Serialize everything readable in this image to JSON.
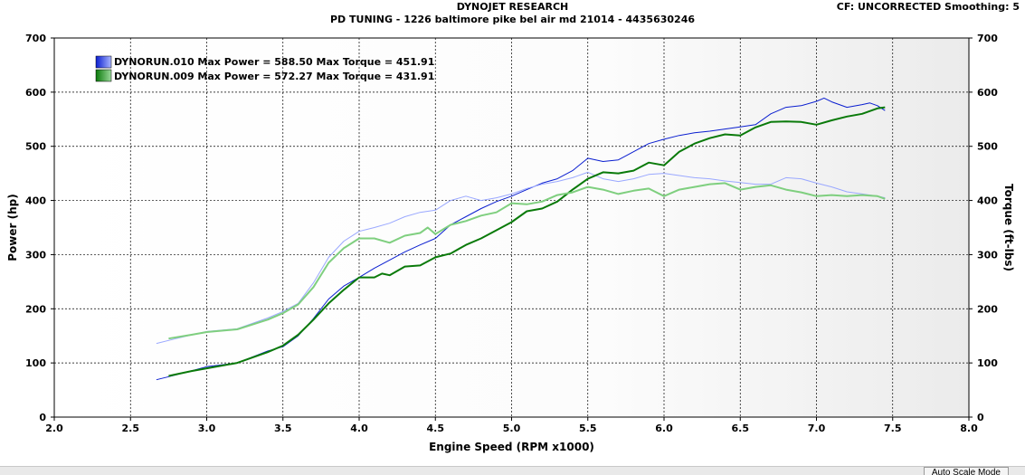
{
  "header": {
    "title": "DYNOJET RESEARCH",
    "subtitle": "PD TUNING - 1226 baltimore pike bel air md 21014 - 4435630246",
    "cf_info": "CF: UNCORRECTED  Smoothing: 5"
  },
  "status_bar": {
    "auto_scale_label": "Auto Scale Mode"
  },
  "chart_data": {
    "type": "line",
    "xlabel": "Engine Speed (RPM x1000)",
    "ylabel": "Power (hp)",
    "y2label": "Torque (ft-lbs)",
    "xlim": [
      2.0,
      8.0
    ],
    "ylim": [
      0,
      700
    ],
    "y2lim": [
      0,
      700
    ],
    "xticks": [
      "2.0",
      "2.5",
      "3.0",
      "3.5",
      "4.0",
      "4.5",
      "5.0",
      "5.5",
      "6.0",
      "6.5",
      "7.0",
      "7.5",
      "8.0"
    ],
    "yticks": [
      "0",
      "100",
      "200",
      "300",
      "400",
      "500",
      "600",
      "700"
    ],
    "grid": true,
    "legend_position": "top-left",
    "legend": [
      {
        "label": "DYNORUN.010 Max Power = 588.50 Max Torque = 451.91",
        "color_dark": "#0a1ed0",
        "color_light": "#9aa8ff"
      },
      {
        "label": "DYNORUN.009 Max Power = 572.27 Max Torque = 431.91",
        "color_dark": "#0a7a0a",
        "color_light": "#7fcf7f"
      }
    ],
    "series": [
      {
        "name": "DYNORUN.010",
        "measure": "power",
        "color": "#0a1ed0",
        "points": [
          [
            2.67,
            69
          ],
          [
            2.8,
            78
          ],
          [
            3.0,
            93
          ],
          [
            3.2,
            100
          ],
          [
            3.4,
            122
          ],
          [
            3.5,
            130
          ],
          [
            3.6,
            150
          ],
          [
            3.7,
            182
          ],
          [
            3.8,
            218
          ],
          [
            3.9,
            242
          ],
          [
            4.0,
            258
          ],
          [
            4.1,
            275
          ],
          [
            4.2,
            290
          ],
          [
            4.3,
            305
          ],
          [
            4.4,
            318
          ],
          [
            4.5,
            330
          ],
          [
            4.6,
            355
          ],
          [
            4.7,
            370
          ],
          [
            4.8,
            385
          ],
          [
            4.9,
            398
          ],
          [
            5.0,
            408
          ],
          [
            5.1,
            420
          ],
          [
            5.2,
            432
          ],
          [
            5.3,
            440
          ],
          [
            5.4,
            455
          ],
          [
            5.5,
            478
          ],
          [
            5.6,
            472
          ],
          [
            5.7,
            475
          ],
          [
            5.8,
            490
          ],
          [
            5.9,
            505
          ],
          [
            6.0,
            513
          ],
          [
            6.1,
            520
          ],
          [
            6.2,
            525
          ],
          [
            6.3,
            528
          ],
          [
            6.4,
            532
          ],
          [
            6.5,
            536
          ],
          [
            6.6,
            540
          ],
          [
            6.7,
            560
          ],
          [
            6.8,
            572
          ],
          [
            6.9,
            575
          ],
          [
            7.0,
            583
          ],
          [
            7.05,
            589
          ],
          [
            7.1,
            582
          ],
          [
            7.2,
            572
          ],
          [
            7.3,
            577
          ],
          [
            7.35,
            580
          ],
          [
            7.4,
            575
          ],
          [
            7.45,
            566
          ]
        ]
      },
      {
        "name": "DYNORUN.010",
        "measure": "torque",
        "color": "#9aa8ff",
        "points": [
          [
            2.67,
            136
          ],
          [
            2.8,
            145
          ],
          [
            3.0,
            158
          ],
          [
            3.2,
            163
          ],
          [
            3.4,
            183
          ],
          [
            3.5,
            195
          ],
          [
            3.6,
            210
          ],
          [
            3.7,
            248
          ],
          [
            3.8,
            295
          ],
          [
            3.9,
            325
          ],
          [
            4.0,
            343
          ],
          [
            4.1,
            350
          ],
          [
            4.2,
            358
          ],
          [
            4.3,
            370
          ],
          [
            4.4,
            378
          ],
          [
            4.5,
            382
          ],
          [
            4.6,
            400
          ],
          [
            4.7,
            408
          ],
          [
            4.8,
            400
          ],
          [
            4.9,
            405
          ],
          [
            5.0,
            412
          ],
          [
            5.1,
            422
          ],
          [
            5.2,
            430
          ],
          [
            5.3,
            435
          ],
          [
            5.4,
            442
          ],
          [
            5.5,
            452
          ],
          [
            5.6,
            440
          ],
          [
            5.7,
            435
          ],
          [
            5.8,
            440
          ],
          [
            5.9,
            448
          ],
          [
            6.0,
            450
          ],
          [
            6.1,
            446
          ],
          [
            6.2,
            442
          ],
          [
            6.3,
            440
          ],
          [
            6.4,
            436
          ],
          [
            6.5,
            433
          ],
          [
            6.6,
            430
          ],
          [
            6.7,
            430
          ],
          [
            6.8,
            442
          ],
          [
            6.9,
            440
          ],
          [
            7.0,
            432
          ],
          [
            7.1,
            425
          ],
          [
            7.2,
            416
          ],
          [
            7.3,
            412
          ],
          [
            7.4,
            408
          ],
          [
            7.45,
            405
          ]
        ]
      },
      {
        "name": "DYNORUN.009",
        "measure": "power",
        "color": "#0a7a0a",
        "points": [
          [
            2.75,
            76
          ],
          [
            2.9,
            85
          ],
          [
            3.0,
            90
          ],
          [
            3.2,
            100
          ],
          [
            3.4,
            120
          ],
          [
            3.5,
            132
          ],
          [
            3.6,
            152
          ],
          [
            3.7,
            180
          ],
          [
            3.8,
            210
          ],
          [
            3.9,
            235
          ],
          [
            4.0,
            258
          ],
          [
            4.1,
            258
          ],
          [
            4.15,
            265
          ],
          [
            4.2,
            262
          ],
          [
            4.3,
            278
          ],
          [
            4.4,
            280
          ],
          [
            4.5,
            295
          ],
          [
            4.6,
            302
          ],
          [
            4.7,
            318
          ],
          [
            4.8,
            330
          ],
          [
            4.9,
            345
          ],
          [
            5.0,
            360
          ],
          [
            5.1,
            380
          ],
          [
            5.2,
            385
          ],
          [
            5.3,
            398
          ],
          [
            5.4,
            420
          ],
          [
            5.5,
            440
          ],
          [
            5.6,
            452
          ],
          [
            5.7,
            450
          ],
          [
            5.8,
            455
          ],
          [
            5.9,
            470
          ],
          [
            6.0,
            465
          ],
          [
            6.1,
            490
          ],
          [
            6.2,
            505
          ],
          [
            6.3,
            515
          ],
          [
            6.4,
            522
          ],
          [
            6.5,
            520
          ],
          [
            6.6,
            535
          ],
          [
            6.7,
            545
          ],
          [
            6.8,
            546
          ],
          [
            6.9,
            545
          ],
          [
            7.0,
            540
          ],
          [
            7.1,
            548
          ],
          [
            7.2,
            555
          ],
          [
            7.3,
            560
          ],
          [
            7.4,
            570
          ],
          [
            7.45,
            572
          ]
        ]
      },
      {
        "name": "DYNORUN.009",
        "measure": "torque",
        "color": "#7fcf7f",
        "points": [
          [
            2.75,
            145
          ],
          [
            2.9,
            152
          ],
          [
            3.0,
            157
          ],
          [
            3.2,
            162
          ],
          [
            3.4,
            180
          ],
          [
            3.5,
            192
          ],
          [
            3.6,
            208
          ],
          [
            3.7,
            240
          ],
          [
            3.8,
            285
          ],
          [
            3.9,
            312
          ],
          [
            4.0,
            330
          ],
          [
            4.1,
            330
          ],
          [
            4.2,
            322
          ],
          [
            4.3,
            335
          ],
          [
            4.4,
            340
          ],
          [
            4.45,
            350
          ],
          [
            4.5,
            338
          ],
          [
            4.6,
            355
          ],
          [
            4.7,
            362
          ],
          [
            4.8,
            372
          ],
          [
            4.9,
            378
          ],
          [
            5.0,
            395
          ],
          [
            5.1,
            393
          ],
          [
            5.2,
            398
          ],
          [
            5.3,
            410
          ],
          [
            5.4,
            415
          ],
          [
            5.5,
            425
          ],
          [
            5.6,
            420
          ],
          [
            5.7,
            412
          ],
          [
            5.8,
            418
          ],
          [
            5.9,
            422
          ],
          [
            6.0,
            408
          ],
          [
            6.1,
            420
          ],
          [
            6.2,
            425
          ],
          [
            6.3,
            430
          ],
          [
            6.4,
            432
          ],
          [
            6.5,
            420
          ],
          [
            6.6,
            425
          ],
          [
            6.7,
            428
          ],
          [
            6.8,
            420
          ],
          [
            6.9,
            415
          ],
          [
            7.0,
            408
          ],
          [
            7.1,
            410
          ],
          [
            7.2,
            408
          ],
          [
            7.3,
            410
          ],
          [
            7.4,
            408
          ],
          [
            7.45,
            403
          ]
        ]
      }
    ]
  }
}
